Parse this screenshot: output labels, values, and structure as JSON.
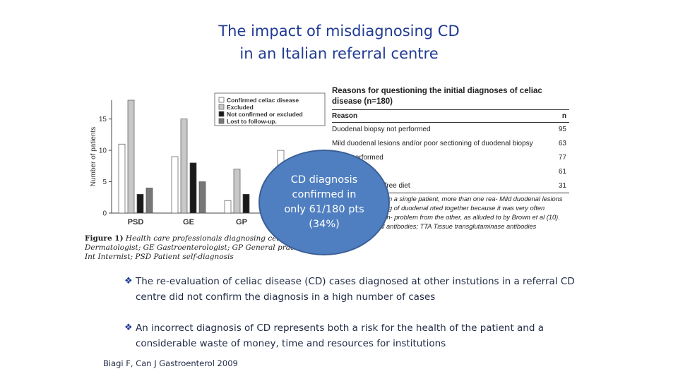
{
  "title": {
    "line1": "The impact of misdiagnosing CD",
    "line2": "in an Italian referral centre"
  },
  "colors": {
    "title": "#1f3a93",
    "callout": "#4f7fc0",
    "bullet_text": "#1f2a44"
  },
  "chart_data": {
    "type": "bar",
    "categories": [
      "PSD",
      "GE",
      "GP",
      "Int"
    ],
    "series": [
      {
        "name": "Confirmed celiac disease",
        "values": [
          11,
          9,
          2,
          10
        ],
        "color": "#ffffff"
      },
      {
        "name": "Excluded",
        "values": [
          18,
          15,
          7,
          7
        ],
        "color": "#c8c8c8"
      },
      {
        "name": "Not confirmed or excluded",
        "values": [
          3,
          8,
          3,
          1
        ],
        "color": "#1a1a1a"
      },
      {
        "name": "Lost to follow-up.",
        "values": [
          4,
          5,
          0,
          0
        ],
        "color": "#777777"
      }
    ],
    "yticks": [
      0,
      5,
      10,
      15
    ],
    "ylim": [
      0,
      18
    ],
    "ylabel": "Number of patients",
    "legend": "top"
  },
  "figure": {
    "label": "Figure 1)",
    "caption": "Health care professionals diagnosing celiac disease. Dermatologist; GE Gastroenterologist; GP General practitioner; Int Internist; PSD Patient self-diagnosis"
  },
  "table": {
    "title": "Reasons for questioning the initial diagnoses of celiac disease (n=180)",
    "headers": {
      "reason": "Reason",
      "n": "n"
    },
    "rows": [
      {
        "reason": "Duodenal biopsy not performed",
        "n": "95"
      },
      {
        "reason": "Mild duodenal lesions and/or poor sectioning of duodenal biopsy",
        "n": "63"
      },
      {
        "reason": "ts not performed",
        "n": "77"
      },
      {
        "reason": "TTA",
        "n": "61"
      },
      {
        "reason": "onse to a gluten-free diet",
        "n": "31"
      }
    ],
    "footnote": "han 180 because in a single patient, more than one rea- Mild duodenal lesions and poor sectioning of duodenal nted together because it was very often impossible to distin- problem from the other, as alluded to by Brown et al (10). EMA Endomysial antibodies; TTA Tissue transglutaminase antibodies"
  },
  "callout": {
    "text": "CD diagnosis confirmed in only 61/180 pts  (34%)"
  },
  "bullets": [
    {
      "mark": "❖",
      "text": "The re-evaluation of celiac disease  (CD) cases diagnosed at other instutions in a referral CD centre did not confirm  the diagnosis in a high number of  cases"
    },
    {
      "mark": "❖",
      "text": "An incorrect diagnosis of CD  represents both a risk for the health of the patient and a considerable waste of money, time and  resources for institutions"
    }
  ],
  "citation": "Biagi F, Can  J Gastroenterol 2009"
}
